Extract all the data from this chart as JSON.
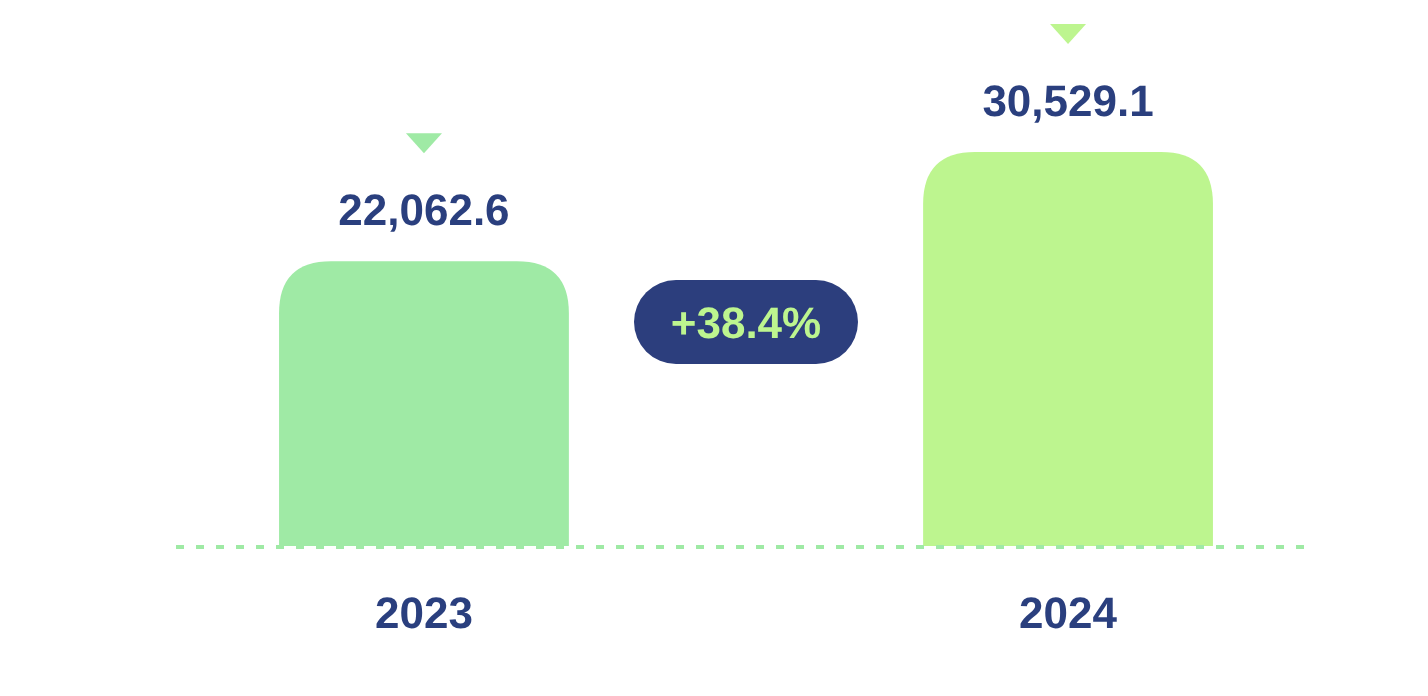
{
  "chart_data": {
    "type": "bar",
    "categories": [
      "2023",
      "2024"
    ],
    "values": [
      22062.6,
      30529.1
    ],
    "value_labels": [
      "22,062.6",
      "30,529.1"
    ],
    "colors": [
      "#9feaa5",
      "#bdf58f"
    ],
    "ylim": [
      0,
      30529.1
    ],
    "tick_labels": "x",
    "annotations": [
      "+38.4%"
    ]
  }
}
